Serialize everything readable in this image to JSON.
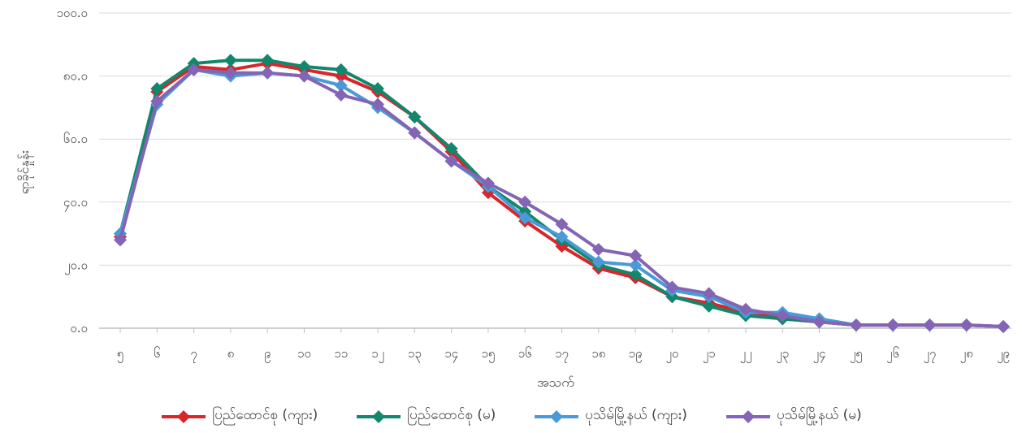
{
  "chart_data": {
    "type": "line",
    "title": "",
    "xlabel": "အသက်",
    "ylabel": "ရာခိုင်နှုန်း",
    "ylim": [
      0,
      100
    ],
    "yticks": [
      "၀.၀",
      "၂၀.၀",
      "၄၀.၀",
      "၆၀.၀",
      "၈၀.၀",
      "၁၀၀.၀"
    ],
    "categories": [
      "၅",
      "၆",
      "၇",
      "၈",
      "၉",
      "၁၀",
      "၁၁",
      "၁၂",
      "၁၃",
      "၁၄",
      "၁၅",
      "၁၆",
      "၁၇",
      "၁၈",
      "၁၉",
      "၂၀",
      "၂၁",
      "၂၂",
      "၂၃",
      "၂၄",
      "၂၅",
      "၂၆",
      "၂၇",
      "၂၈",
      "၂၉"
    ],
    "grid": true,
    "legend_position": "bottom",
    "series": [
      {
        "name": "ပြည်ထောင်စု (ကျား)",
        "color": "#d7262c",
        "values": [
          29,
          75,
          83,
          82,
          84,
          82,
          80,
          75,
          67,
          56,
          43,
          34,
          26,
          19,
          16,
          10,
          8,
          5,
          3,
          2,
          1,
          1,
          1,
          1,
          0.5
        ]
      },
      {
        "name": "ပြည်ထောင်စု (မ)",
        "color": "#12876b",
        "values": [
          30,
          76,
          84,
          85,
          85,
          83,
          82,
          76,
          67,
          57,
          45,
          37,
          28,
          20,
          17,
          10,
          7,
          4,
          3,
          2,
          1,
          1,
          1,
          1,
          0.5
        ]
      },
      {
        "name": "ပုသိမ်မြို့နယ် (ကျား)",
        "color": "#4a9ad7",
        "values": [
          30,
          71,
          82,
          80,
          81,
          80,
          77,
          70,
          62,
          53,
          45,
          35,
          29,
          21,
          20,
          12,
          10,
          5,
          5,
          3,
          1,
          1,
          1,
          1,
          0.5
        ]
      },
      {
        "name": "ပုသိမ်မြို့နယ် (မ)",
        "color": "#8464b4",
        "values": [
          28,
          72,
          82,
          81,
          81,
          80,
          74,
          71,
          62,
          53,
          46,
          40,
          33,
          25,
          23,
          13,
          11,
          6,
          4,
          2,
          1,
          1,
          1,
          1,
          0.5
        ]
      }
    ]
  }
}
